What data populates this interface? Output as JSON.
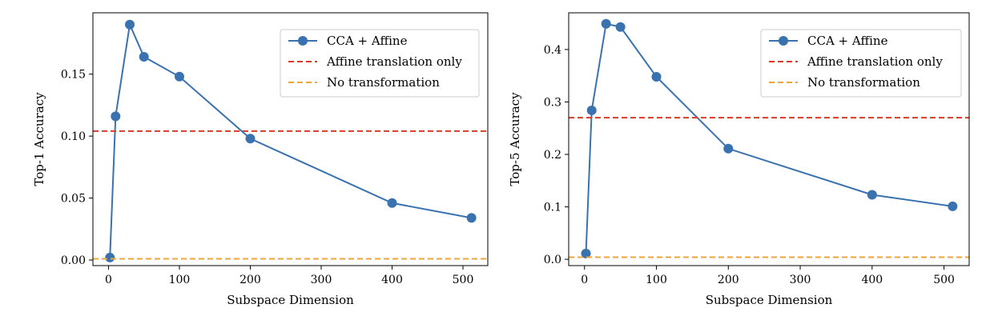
{
  "chart_data": [
    {
      "type": "line",
      "xlabel": "Subspace Dimension",
      "ylabel": "Top-1 Accuracy",
      "xlim": [
        -22,
        535
      ],
      "ylim": [
        -0.0045,
        0.1995
      ],
      "xticks": [
        0,
        100,
        200,
        300,
        400,
        500
      ],
      "yticks": [
        0.0,
        0.05,
        0.1,
        0.15
      ],
      "ytick_labels": [
        "0.00",
        "0.05",
        "0.10",
        "0.15"
      ],
      "grid": false,
      "legend_position": "top-right",
      "series": [
        {
          "name": "CCA + Affine",
          "color": "#3a72b0",
          "style": "solid-marker",
          "x": [
            2,
            10,
            30,
            50,
            100,
            200,
            400,
            512
          ],
          "y": [
            0.002,
            0.116,
            0.19,
            0.164,
            0.148,
            0.098,
            0.046,
            0.034
          ]
        },
        {
          "name": "Affine translation only",
          "color": "#dc3a28",
          "style": "dashed-hline",
          "y": 0.104
        },
        {
          "name": "No transformation",
          "color": "#f0a53c",
          "style": "dashed-hline",
          "y": 0.001
        }
      ]
    },
    {
      "type": "line",
      "xlabel": "Subspace Dimension",
      "ylabel": "Top-5 Accuracy",
      "xlim": [
        -22,
        535
      ],
      "ylim": [
        -0.012,
        0.47
      ],
      "xticks": [
        0,
        100,
        200,
        300,
        400,
        500
      ],
      "yticks": [
        0.0,
        0.1,
        0.2,
        0.3,
        0.4
      ],
      "ytick_labels": [
        "0.0",
        "0.1",
        "0.2",
        "0.3",
        "0.4"
      ],
      "grid": false,
      "legend_position": "top-right",
      "series": [
        {
          "name": "CCA + Affine",
          "color": "#3a72b0",
          "style": "solid-marker",
          "x": [
            2,
            10,
            30,
            50,
            100,
            200,
            400,
            512
          ],
          "y": [
            0.011,
            0.284,
            0.449,
            0.443,
            0.348,
            0.211,
            0.123,
            0.101
          ]
        },
        {
          "name": "Affine translation only",
          "color": "#dc3a28",
          "style": "dashed-hline",
          "y": 0.27
        },
        {
          "name": "No transformation",
          "color": "#f0a53c",
          "style": "dashed-hline",
          "y": 0.004
        }
      ]
    }
  ]
}
